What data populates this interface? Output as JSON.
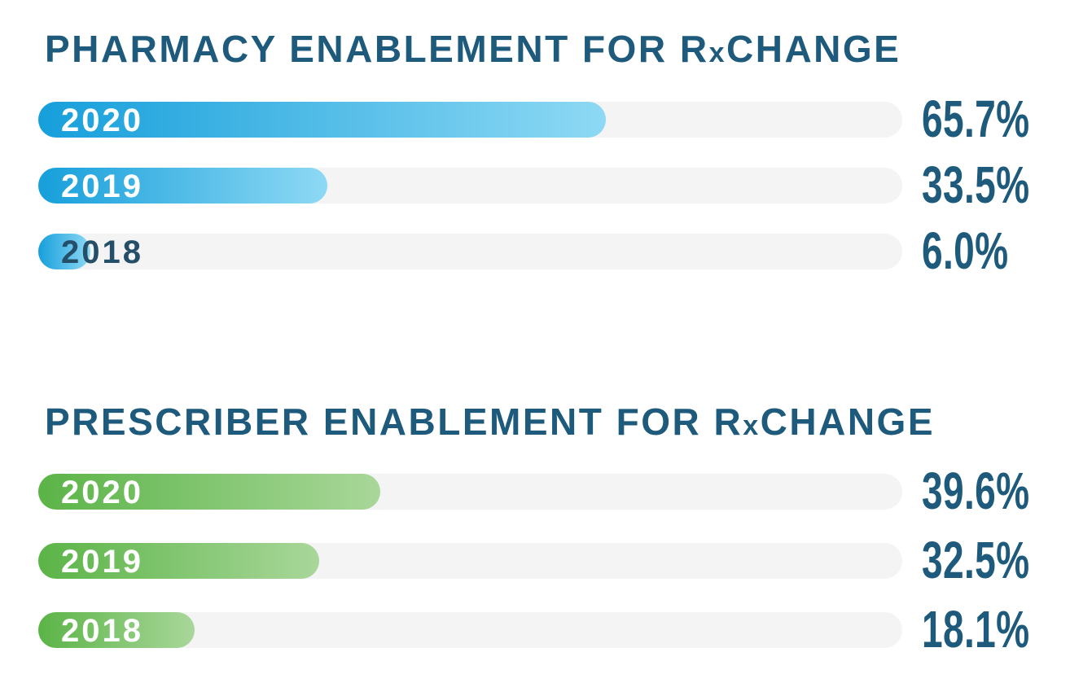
{
  "chart_data": [
    {
      "type": "bar",
      "orientation": "horizontal",
      "title": "PHARMACY ENABLEMENT FOR RxCHANGE",
      "title_parts": {
        "pre": "PHARMACY ENABLEMENT FOR R",
        "x": "x",
        "post": "CHANGE"
      },
      "categories": [
        "2020",
        "2019",
        "2018"
      ],
      "values": [
        65.7,
        33.5,
        6.0
      ],
      "value_labels": [
        "65.7%",
        "33.5%",
        "6.0%"
      ],
      "xlabel": "",
      "ylabel": "",
      "xlim": [
        0,
        100
      ],
      "grid": false,
      "legend": false,
      "colors": {
        "bar_gradient_start": "#169FDB",
        "bar_gradient_end": "#8ED9F4",
        "track": "#F4F4F4",
        "title_text": "#1E5A7C",
        "value_text": "#1E5A7C",
        "year_label_light": "#FFFFFF",
        "year_label_dark": "#254E69"
      }
    },
    {
      "type": "bar",
      "orientation": "horizontal",
      "title": "PRESCRIBER ENABLEMENT FOR RxCHANGE",
      "title_parts": {
        "pre": "PRESCRIBER ENABLEMENT FOR R",
        "x": "x",
        "post": "CHANGE"
      },
      "categories": [
        "2020",
        "2019",
        "2018"
      ],
      "values": [
        39.6,
        32.5,
        18.1
      ],
      "value_labels": [
        "39.6%",
        "32.5%",
        "18.1%"
      ],
      "xlabel": "",
      "ylabel": "",
      "xlim": [
        0,
        100
      ],
      "grid": false,
      "legend": false,
      "colors": {
        "bar_gradient_start": "#5BB447",
        "bar_gradient_end": "#A9D79A",
        "track": "#F4F4F4",
        "title_text": "#1E5A7C",
        "value_text": "#1E5A7C",
        "year_label_light": "#FFFFFF"
      }
    }
  ]
}
